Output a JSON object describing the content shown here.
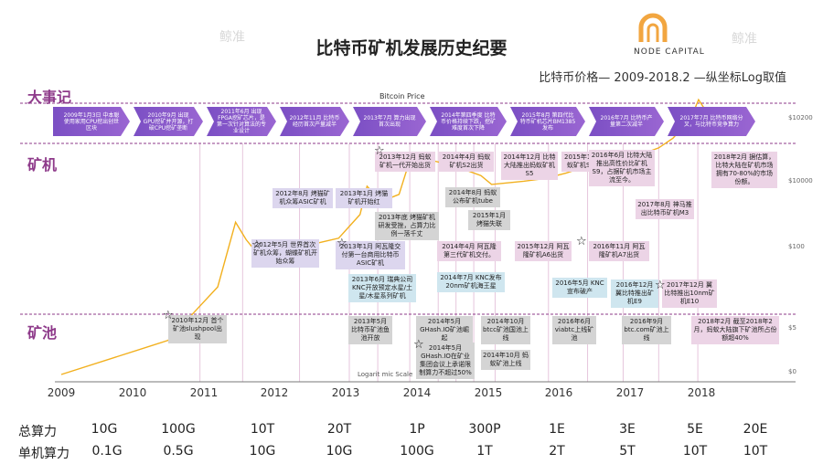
{
  "title": "比特币矿机发展历史纪要",
  "subtitle": "比特币价格— 2009-2018.2 —纵坐标Log取值",
  "logo": "NODE CAPITAL",
  "watermark": "鲸准",
  "row_labels": [
    "大事记",
    "矿机",
    "矿池"
  ],
  "chart_data": {
    "type": "line",
    "title": "Bitcoin Price",
    "scale_note": "Logarit mic Scale",
    "y_scale": "log",
    "x_years": [
      "2009",
      "2010",
      "2011",
      "2012",
      "2013",
      "2014",
      "2015",
      "2016",
      "2017",
      "2018"
    ],
    "y_ticks": [
      "$10200",
      "$10000",
      "$100",
      "$5",
      "$0"
    ],
    "series": [
      {
        "color": "#f2b01e",
        "x": [
          2009.0,
          2010.5,
          2010.9,
          2011.2,
          2011.45,
          2011.6,
          2011.9,
          2012.2,
          2012.6,
          2012.9,
          2013.2,
          2013.3,
          2013.5,
          2013.75,
          2013.92,
          2014.1,
          2014.5,
          2014.9,
          2015.05,
          2015.5,
          2015.8,
          2016.1,
          2016.5,
          2016.8,
          2017.1,
          2017.4,
          2017.6,
          2017.85,
          2017.96,
          2018.1
        ],
        "y": [
          0.01,
          0.06,
          0.3,
          1,
          30,
          12,
          3,
          5,
          10,
          13,
          45,
          200,
          90,
          130,
          1000,
          850,
          600,
          350,
          220,
          260,
          300,
          400,
          650,
          700,
          1000,
          1500,
          2500,
          7000,
          19000,
          8500
        ]
      }
    ]
  },
  "milestones": [
    "2009年1月3日 中本聪使用家用CPU挖出创世区块",
    "2010年9月 出现GPU挖矿并开源，打破CPU挖矿垄断",
    "2011年6月 出现FPGA挖矿芯片，是第一次针对算法的专业设计",
    "2012年11月 比特币经历首次产量减半",
    "2013年7月 算力出现首次出现",
    "2014年第四季度 比特币价格持续下跌，挖矿难度首次下降",
    "2015年8月 第四代比特币矿机芯片BM1385发布",
    "2016年7月 比特币产量第二次减半",
    "2017年7月 比特币网络分叉，与比特币竞争算力"
  ],
  "miner_events": [
    "2012年8月 烤猫矿机众筹ASIC矿机",
    "2012年5月 世界首次矿机众筹，蝴蝶矿机开始众筹",
    "2013年1月 烤猫矿机开始红",
    "2013年1月 阿瓦隆交付第一台商用比特币ASIC矿机",
    "2013年12月 蚂蚁矿机一代开始出货",
    "2013年底 烤猫矿机研发受挫，占算力比例一落千丈",
    "2013年6月 瑞典公司KNC开放预定水星/土星/木星系列矿机",
    "2014年4月 蚂蚁矿机S2出货",
    "2014年12月 比特大陆推出蚂蚁矿机S5",
    "2014年8月 蚂蚁公布矿机tube",
    "2015年1月 烤猫失联",
    "2014年4月 阿瓦隆第三代矿机交付。",
    "2014年7月 KNC发布20nm矿机海王星",
    "2015年11月 蚂蚁矿机S7量产",
    "2016年6月 比特大陆推出高性价比矿机S9，占据矿机市场主流至今。",
    "2015年12月 阿瓦隆矿机A6出货",
    "2016年11月 阿瓦隆矿机A7出货",
    "2016年5月 KNC宣布破产",
    "2016年12月 翼比特推出矿机E9",
    "2017年12月 翼比特推出10nm矿机E10",
    "2017年8月 神马推出比特币矿机M3",
    "2018年2月 据估算，比特大陆在矿机市场拥有70-80%的市场份额。"
  ],
  "pool_events": [
    "2010年12月 首个矿池slushpool出现",
    "2013年5月 比特币矿池鱼池开放",
    "2014年5月 GHash.IO矿池崛起",
    "2014年10月 btcc矿池国池上线",
    "2014年5月 GHash.IO在矿业集团会议上承诺限制算力不超过50%",
    "2014年10月 蚂蚁矿池上线",
    "2016年6月 viabtc上线矿池",
    "2016年9月 btc.com矿池上线",
    "2018年2月 截至2018年2月，蚂蚁大陆旗下矿池所占份额超40%"
  ],
  "hashrate": {
    "total_label": "总算力",
    "total": [
      "10G",
      "100G",
      "10T",
      "20T",
      "1P",
      "300P",
      "1E",
      "3E",
      "5E",
      "20E"
    ],
    "single_label": "单机算力",
    "single": [
      "0.1G",
      "0.5G",
      "10G",
      "10G",
      "100G",
      "1T",
      "2T",
      "5T",
      "10T",
      "10T"
    ]
  }
}
